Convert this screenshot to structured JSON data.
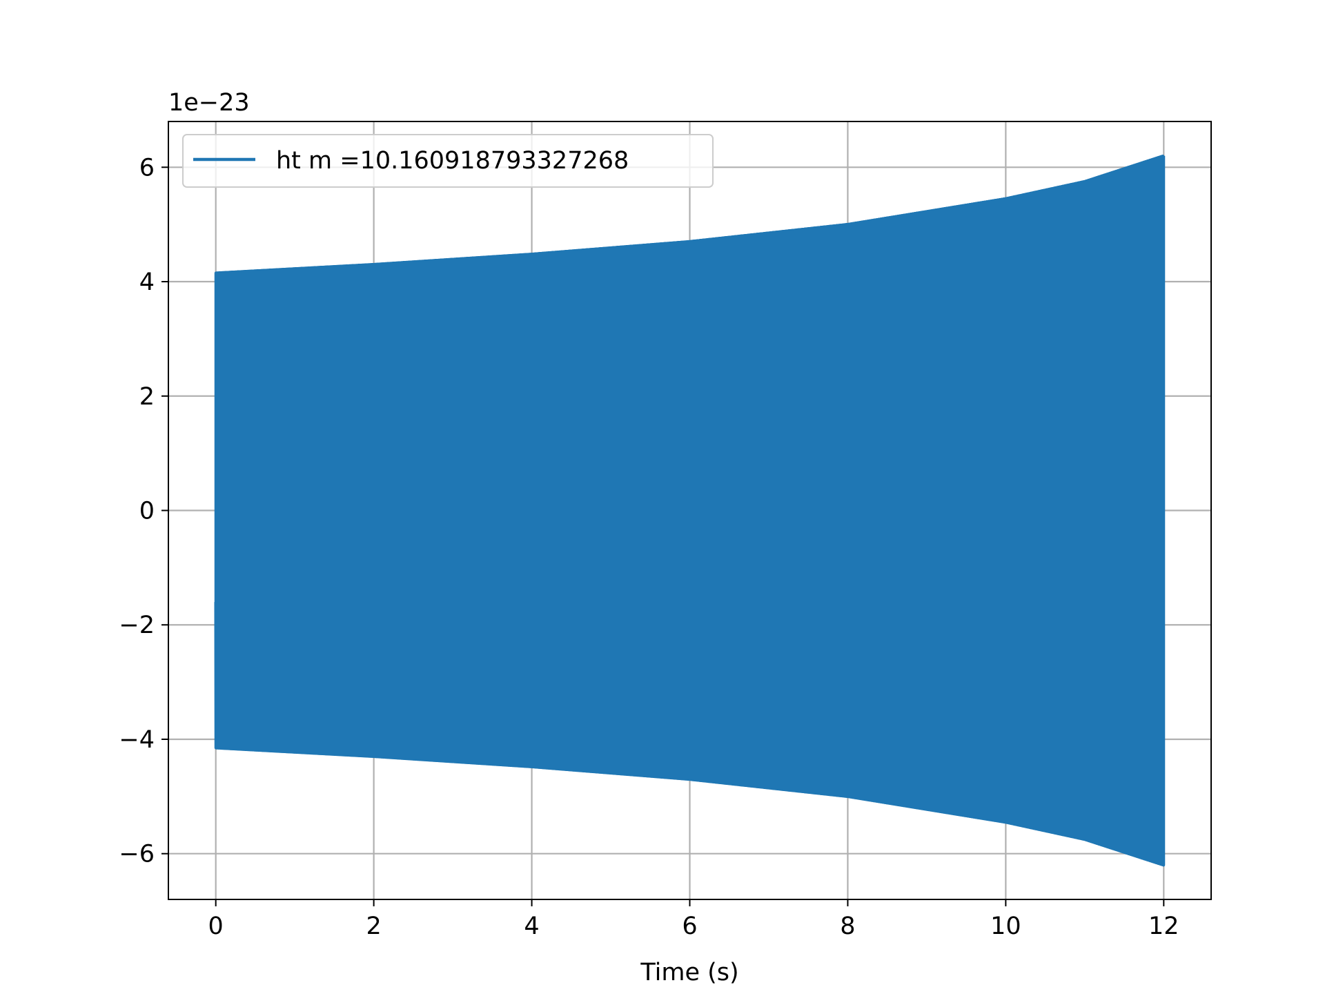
{
  "chart_data": {
    "type": "line",
    "title": "",
    "xlabel": "Time (s)",
    "ylabel": "",
    "y_offset_label": "1e−23",
    "xlim": [
      -0.6,
      12.6
    ],
    "ylim": [
      -6.8,
      6.8
    ],
    "x_ticks": [
      0,
      2,
      4,
      6,
      8,
      10,
      12
    ],
    "x_tick_labels": [
      "0",
      "2",
      "4",
      "6",
      "8",
      "10",
      "12"
    ],
    "y_ticks": [
      -6,
      -4,
      -2,
      0,
      2,
      4,
      6
    ],
    "y_tick_labels": [
      "−6",
      "−4",
      "−2",
      "0",
      "2",
      "4",
      "6"
    ],
    "grid": true,
    "legend_position": "upper-left",
    "series": [
      {
        "name": "ht m =10.160918793327268",
        "color": "#1f77b4",
        "x_range": [
          0,
          12
        ],
        "initial_value": -1.6,
        "envelope_time": [
          0,
          2,
          4,
          6,
          8,
          10,
          11,
          12
        ],
        "envelope_amplitude": [
          4.15,
          4.3,
          4.48,
          4.7,
          5.0,
          5.45,
          5.75,
          6.2
        ]
      }
    ]
  }
}
